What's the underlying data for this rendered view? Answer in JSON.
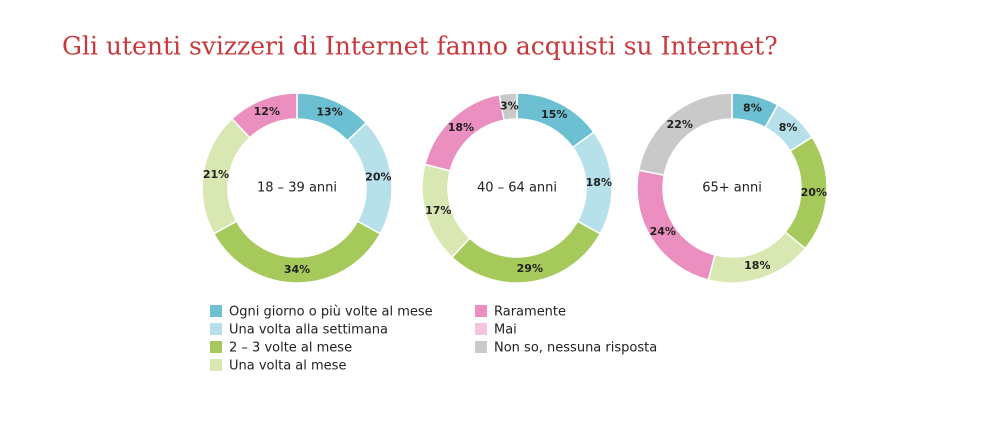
{
  "title": "Gli utenti svizzeri di Internet fanno acquisti su Internet?",
  "chart_data": [
    {
      "type": "donut",
      "center_label": "18 – 39 anni",
      "categories": [
        "Ogni giorno o più volte al mese",
        "Una volta alla settimana",
        "2 – 3 volte al mese",
        "Una volta al mese",
        "Raramente",
        "Mai",
        "Non so, nessuna risposta"
      ],
      "colors": [
        "#6cc0d2",
        "#b7e1ea",
        "#a5c95a",
        "#d9e7b2",
        "#ea8fbf",
        "#f5c4dd",
        "#c9c9c9"
      ],
      "values": [
        13,
        20,
        34,
        21,
        12,
        0,
        0
      ],
      "value_labels": [
        "13%",
        "20%",
        "34%",
        "21%",
        "12%",
        null,
        null
      ]
    },
    {
      "type": "donut",
      "center_label": "40 – 64 anni",
      "categories": [
        "Ogni giorno o più volte al mese",
        "Una volta alla settimana",
        "2 – 3 volte al mese",
        "Una volta al mese",
        "Raramente",
        "Mai",
        "Non so, nessuna risposta"
      ],
      "colors": [
        "#6cc0d2",
        "#b7e1ea",
        "#a5c95a",
        "#d9e7b2",
        "#ea8fbf",
        "#f5c4dd",
        "#c9c9c9"
      ],
      "values": [
        15,
        18,
        29,
        17,
        18,
        0,
        3
      ],
      "value_labels": [
        "15%",
        "18%",
        "29%",
        "17%",
        "18%",
        null,
        "3%"
      ]
    },
    {
      "type": "donut",
      "center_label": "65+ anni",
      "categories": [
        "Ogni giorno o più volte al mese",
        "Una volta alla settimana",
        "2 – 3 volte al mese",
        "Una volta al mese",
        "Raramente",
        "Mai",
        "Non so, nessuna risposta"
      ],
      "colors": [
        "#6cc0d2",
        "#b7e1ea",
        "#a5c95a",
        "#d9e7b2",
        "#ea8fbf",
        "#f5c4dd",
        "#c9c9c9"
      ],
      "values": [
        8,
        8,
        20,
        18,
        24,
        0,
        22
      ],
      "value_labels": [
        "8%",
        "8%",
        "20%",
        "18%",
        "24%",
        null,
        "22%"
      ]
    }
  ]
}
